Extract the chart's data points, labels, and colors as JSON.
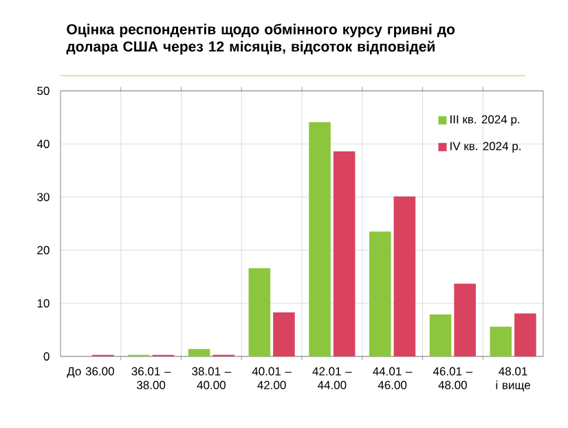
{
  "chart_data": {
    "type": "bar",
    "title": "Оцінка респондентів щодо обмінного курсу гривні до долара США через 12 місяців, відсоток відповідей",
    "categories": [
      "До 36.00",
      "36.01 – 38.00",
      "38.01 – 40.00",
      "40.01 – 42.00",
      "42.01 – 44.00",
      "44.01 – 46.00",
      "46.01 – 48.00",
      "48.01 і вище"
    ],
    "series": [
      {
        "name": "III кв. 2024 р.",
        "color": "#8cc63e",
        "values": [
          0,
          0.3,
          1.4,
          16.6,
          44.1,
          23.5,
          7.9,
          5.6
        ]
      },
      {
        "name": "IV кв. 2024 р.",
        "color": "#d9435f",
        "values": [
          0.3,
          0.3,
          0.3,
          8.3,
          38.6,
          30.1,
          13.7,
          8.1
        ]
      }
    ],
    "ylim": [
      0,
      50
    ],
    "yticks": [
      0,
      10,
      20,
      30,
      40,
      50
    ],
    "grid": true,
    "legend": "top right"
  }
}
